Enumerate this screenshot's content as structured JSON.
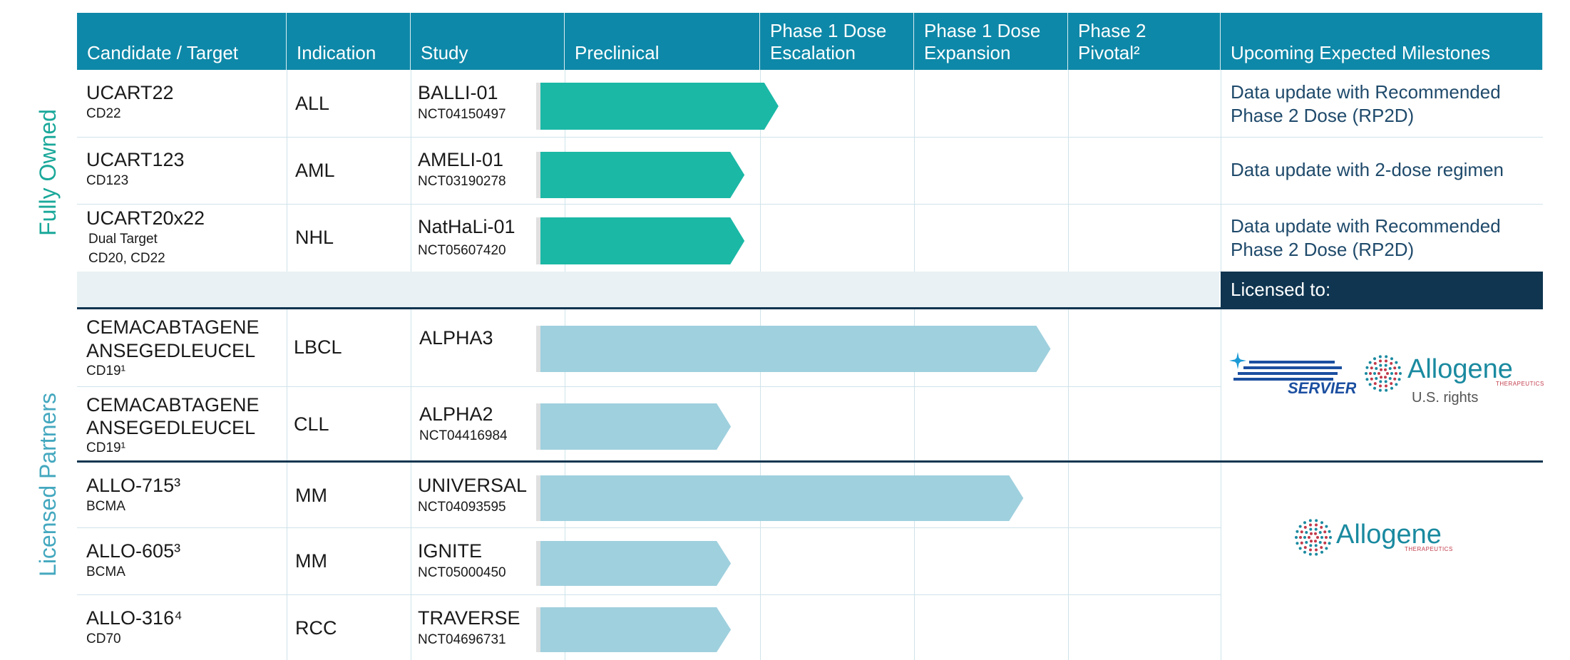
{
  "header": {
    "candidate": "Candidate / Target",
    "indication": "Indication",
    "study": "Study",
    "preclinical": "Preclinical",
    "phase1_escalation_l1": "Phase 1 Dose",
    "phase1_escalation_l2": "Escalation",
    "phase1_expansion_l1": "Phase 1 Dose",
    "phase1_expansion_l2": "Expansion",
    "phase2_l1": "Phase 2",
    "phase2_l2": "Pivotal²",
    "milestones": "Upcoming Expected Milestones"
  },
  "groups": {
    "fully_owned": "Fully Owned",
    "licensed_partners": "Licensed Partners"
  },
  "colors": {
    "header": "#0e88a8",
    "fully_owned_bar": "#1bb8a6",
    "licensed_bar": "#9fd0de",
    "licensed_band": "#0f3550"
  },
  "rows": [
    {
      "name": "UCART22",
      "target": "CD22",
      "target2": "",
      "indication": "ALL",
      "study": "BALLI-01",
      "nct": "NCT04150497",
      "progress": 0.35,
      "group": "owned"
    },
    {
      "name": "UCART123",
      "target": "CD123",
      "target2": "",
      "indication": "AML",
      "study": "AMELI-01",
      "nct": "NCT03190278",
      "progress": 0.3,
      "group": "owned"
    },
    {
      "name": "UCART20x22",
      "target": "Dual Target",
      "target2": "CD20, CD22",
      "indication": "NHL",
      "study": "NatHaLi-01",
      "nct": "NCT05607420",
      "progress": 0.3,
      "group": "owned"
    },
    {
      "name": "CEMACABTAGENE",
      "name2": "ANSEGEDLEUCEL",
      "target": "CD19¹",
      "indication": "LBCL",
      "study": "ALPHA3",
      "nct": "",
      "progress": 0.75,
      "group": "licensed"
    },
    {
      "name": "CEMACABTAGENE",
      "name2": "ANSEGEDLEUCEL",
      "target": "CD19¹",
      "indication": "CLL",
      "study": "ALPHA2",
      "nct": "NCT04416984",
      "progress": 0.28,
      "group": "licensed"
    },
    {
      "name": "ALLO-715³",
      "target": "BCMA",
      "indication": "MM",
      "study": "UNIVERSAL",
      "nct": "NCT04093595",
      "progress": 0.71,
      "group": "licensed"
    },
    {
      "name": "ALLO-605³",
      "target": "BCMA",
      "indication": "MM",
      "study": "IGNITE",
      "nct": "NCT05000450",
      "progress": 0.28,
      "group": "licensed"
    },
    {
      "name": "ALLO-316⁴",
      "target": "CD70",
      "indication": "RCC",
      "study": "TRAVERSE",
      "nct": "NCT04696731",
      "progress": 0.28,
      "group": "licensed"
    }
  ],
  "milestones": {
    "r1_l1": "Data update with Recommended",
    "r1_l2": "Phase 2 Dose (RP2D)",
    "r2": "Data update with 2-dose regimen",
    "r3_l1": "Data update with Recommended",
    "r3_l2": "Phase 2 Dose (RP2D)",
    "licensed_to": "Licensed to:"
  },
  "partners": {
    "servier": "SERVIER",
    "allogene": "Allogene",
    "allogene_tag": "THERAPEUTICS",
    "us_rights": "U.S. rights"
  }
}
